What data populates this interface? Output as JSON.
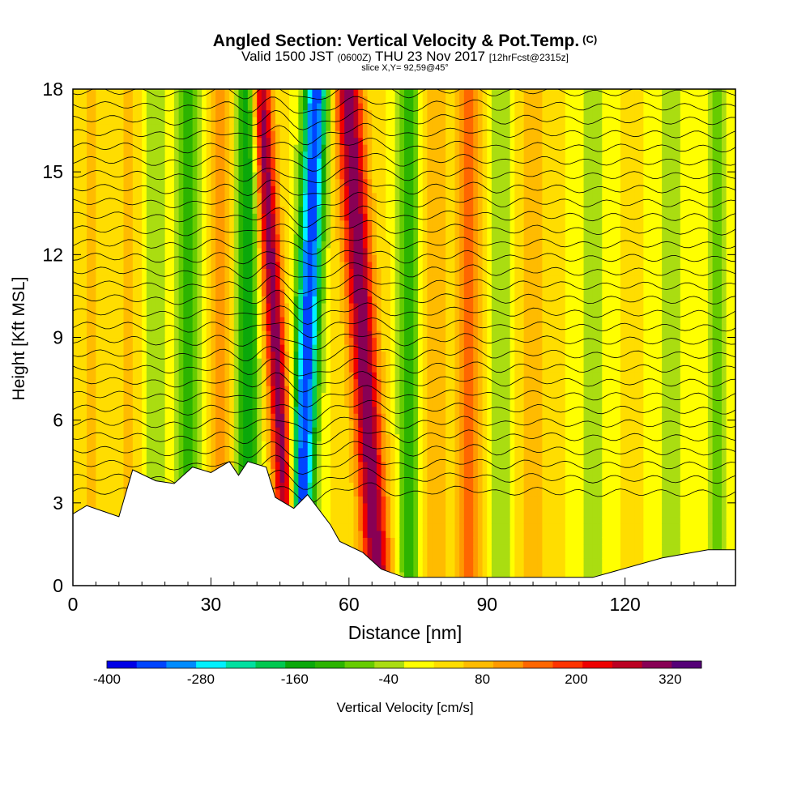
{
  "chart_data": {
    "type": "heatmap",
    "title": "Angled Section: Vertical Velocity & Pot.Temp.",
    "title_suffix": "(C)",
    "subtitle_main": "Valid 1500 JST",
    "subtitle_utc": "(0600Z)",
    "subtitle_date": "THU 23 Nov 2017",
    "subtitle_fcst": "[12hrFcst@2315z]",
    "slice_text": "slice X,Y= 92,59@45°",
    "xlabel": "Distance [nm]",
    "ylabel": "Height [Kft MSL]",
    "x_ticks": [
      "0",
      "30",
      "60",
      "90",
      "120"
    ],
    "x_tick_values": [
      0,
      30,
      60,
      90,
      120
    ],
    "y_ticks": [
      "0",
      "3",
      "6",
      "9",
      "12",
      "15",
      "18"
    ],
    "y_tick_values": [
      0,
      3,
      6,
      9,
      12,
      15,
      18
    ],
    "xlim": [
      0,
      144
    ],
    "ylim": [
      0,
      18
    ],
    "colorbar": {
      "label": "Vertical Velocity [cm/s]",
      "tick_labels": [
        "-400",
        "-280",
        "-160",
        "-40",
        "80",
        "200",
        "320"
      ],
      "tick_values": [
        -400,
        -280,
        -160,
        -40,
        80,
        200,
        320
      ],
      "range": [
        -400,
        360
      ],
      "colors": [
        "#0000e6",
        "#0045ff",
        "#008cff",
        "#00f0ff",
        "#00e0a0",
        "#00c850",
        "#0aa80a",
        "#2cb400",
        "#66cc00",
        "#aadd11",
        "#ffff00",
        "#ffdd00",
        "#ffbb00",
        "#ff9900",
        "#ff6600",
        "#ff3300",
        "#ee0000",
        "#bb0022",
        "#880055",
        "#550077"
      ]
    },
    "terrain_kft": [
      [
        0,
        2.6
      ],
      [
        3,
        2.9
      ],
      [
        10,
        2.5
      ],
      [
        13,
        4.2
      ],
      [
        18,
        3.8
      ],
      [
        22,
        3.7
      ],
      [
        26,
        4.3
      ],
      [
        30,
        4.1
      ],
      [
        34,
        4.5
      ],
      [
        36,
        4.0
      ],
      [
        38,
        4.5
      ],
      [
        42,
        4.3
      ],
      [
        44,
        3.2
      ],
      [
        48,
        2.8
      ],
      [
        51,
        3.3
      ],
      [
        56,
        2.2
      ],
      [
        58,
        1.6
      ],
      [
        63,
        1.2
      ],
      [
        67,
        0.6
      ],
      [
        72,
        0.3
      ],
      [
        90,
        0.3
      ],
      [
        113,
        0.3
      ],
      [
        128,
        1.0
      ],
      [
        138,
        1.3
      ],
      [
        144,
        1.3
      ]
    ],
    "velocity_bands_cm_s": [
      {
        "x": 4,
        "w": 2.5,
        "value": 40
      },
      {
        "x": 12,
        "w": 2.5,
        "value": 40
      },
      {
        "x": 18,
        "w": 2.5,
        "value": -60
      },
      {
        "x": 25,
        "w": 3,
        "value": -120
      },
      {
        "x": 32,
        "w": 2.5,
        "value": 100
      },
      {
        "x": 38,
        "w": 2.2,
        "value": -200
      },
      {
        "x": 44,
        "w": 2.2,
        "value": 290
      },
      {
        "x": 51,
        "w": 2.6,
        "value": -380
      },
      {
        "x": 63,
        "w": 3,
        "value": 300
      },
      {
        "x": 73,
        "w": 2.4,
        "value": -130
      },
      {
        "x": 79,
        "w": 2.5,
        "value": 60
      },
      {
        "x": 86,
        "w": 2.4,
        "value": 150
      },
      {
        "x": 93,
        "w": 2.2,
        "value": -80
      },
      {
        "x": 100,
        "w": 3,
        "value": 60
      },
      {
        "x": 113,
        "w": 3,
        "value": -70
      },
      {
        "x": 130,
        "w": 3,
        "value": -60
      },
      {
        "x": 140,
        "w": 2.5,
        "value": -90
      }
    ],
    "isentropes_C": {
      "count": 30,
      "lowest_height_kft": 3.4,
      "spacing_kft": 0.5
    }
  }
}
